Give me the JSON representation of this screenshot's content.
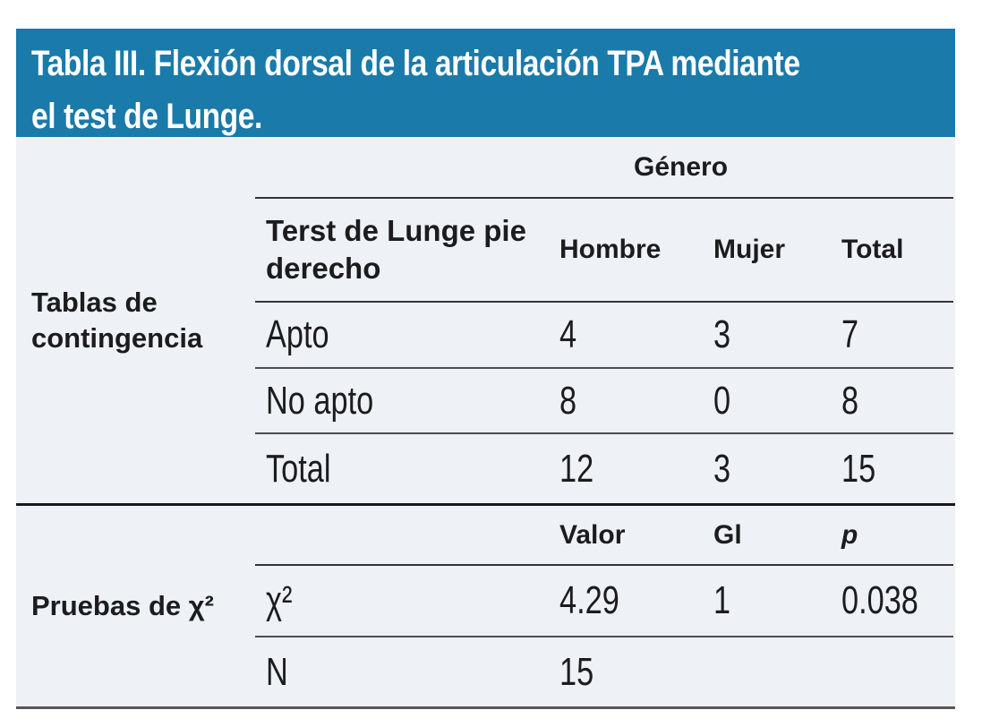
{
  "table_title": {
    "line1": "Tabla III. Flexión dorsal de la articulación TPA mediante",
    "line2": "el test de Lunge."
  },
  "contingency": {
    "section_label": "Tablas de contingencia",
    "span_header": "Género",
    "col_headers": {
      "row_label": "Terst de Lunge pie derecho",
      "c1": "Hombre",
      "c2": "Mujer",
      "c3": "Total"
    },
    "rows": [
      {
        "label": "Apto",
        "c1": "4",
        "c2": "3",
        "c3": "7"
      },
      {
        "label": "No apto",
        "c1": "8",
        "c2": "0",
        "c3": "8"
      },
      {
        "label": "Total",
        "c1": "12",
        "c2": "3",
        "c3": "15"
      }
    ]
  },
  "chi_square": {
    "section_label": "Pruebas de χ²",
    "col_headers": {
      "c1": "Valor",
      "c2": "Gl",
      "c3": "p"
    },
    "rows": [
      {
        "label": "χ²",
        "c1": "4.29",
        "c2": "1",
        "c3": "0.038"
      },
      {
        "label": "N",
        "c1": "15",
        "c2": "",
        "c3": ""
      }
    ]
  },
  "colors": {
    "header_bg": "#1a7aa9",
    "body_bg": "#eef1f6",
    "title_text": "#ffffff",
    "text": "#1c1c1e",
    "line_dark": "#333333",
    "line_mid": "#4d4d4d",
    "line_heavy": "#191919",
    "line_bottom": "#575757"
  }
}
